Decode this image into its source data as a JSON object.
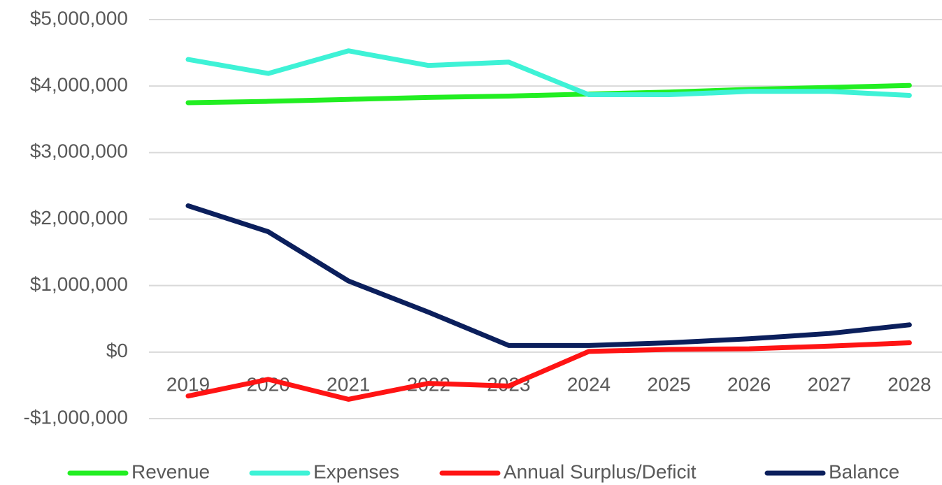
{
  "chart_data": {
    "type": "line",
    "categories": [
      "2019",
      "2020",
      "2021",
      "2022",
      "2023",
      "2024",
      "2025",
      "2026",
      "2027",
      "2028"
    ],
    "series": [
      {
        "name": "Revenue",
        "color": "#22ee22",
        "values": [
          3750000,
          3770000,
          3800000,
          3830000,
          3850000,
          3880000,
          3910000,
          3950000,
          3980000,
          4010000
        ]
      },
      {
        "name": "Expenses",
        "color": "#3ef2d6",
        "values": [
          4400000,
          4190000,
          4530000,
          4310000,
          4360000,
          3870000,
          3870000,
          3920000,
          3920000,
          3860000
        ]
      },
      {
        "name": "Annual Surplus/Deficit",
        "color": "#ff1414",
        "values": [
          -660000,
          -410000,
          -710000,
          -470000,
          -510000,
          10000,
          40000,
          50000,
          90000,
          140000
        ]
      },
      {
        "name": "Balance",
        "color": "#0b1f5c",
        "values": [
          2200000,
          1810000,
          1070000,
          600000,
          100000,
          100000,
          140000,
          200000,
          280000,
          410000
        ]
      }
    ],
    "ylim": [
      -1000000,
      5000000
    ],
    "yticks": [
      {
        "value": -1000000,
        "label": "-$1,000,000"
      },
      {
        "value": 0,
        "label": "$0"
      },
      {
        "value": 1000000,
        "label": "$1,000,000"
      },
      {
        "value": 2000000,
        "label": "$2,000,000"
      },
      {
        "value": 3000000,
        "label": "$3,000,000"
      },
      {
        "value": 4000000,
        "label": "$4,000,000"
      },
      {
        "value": 5000000,
        "label": "$5,000,000"
      }
    ],
    "grid": true,
    "legend": "bottom"
  }
}
